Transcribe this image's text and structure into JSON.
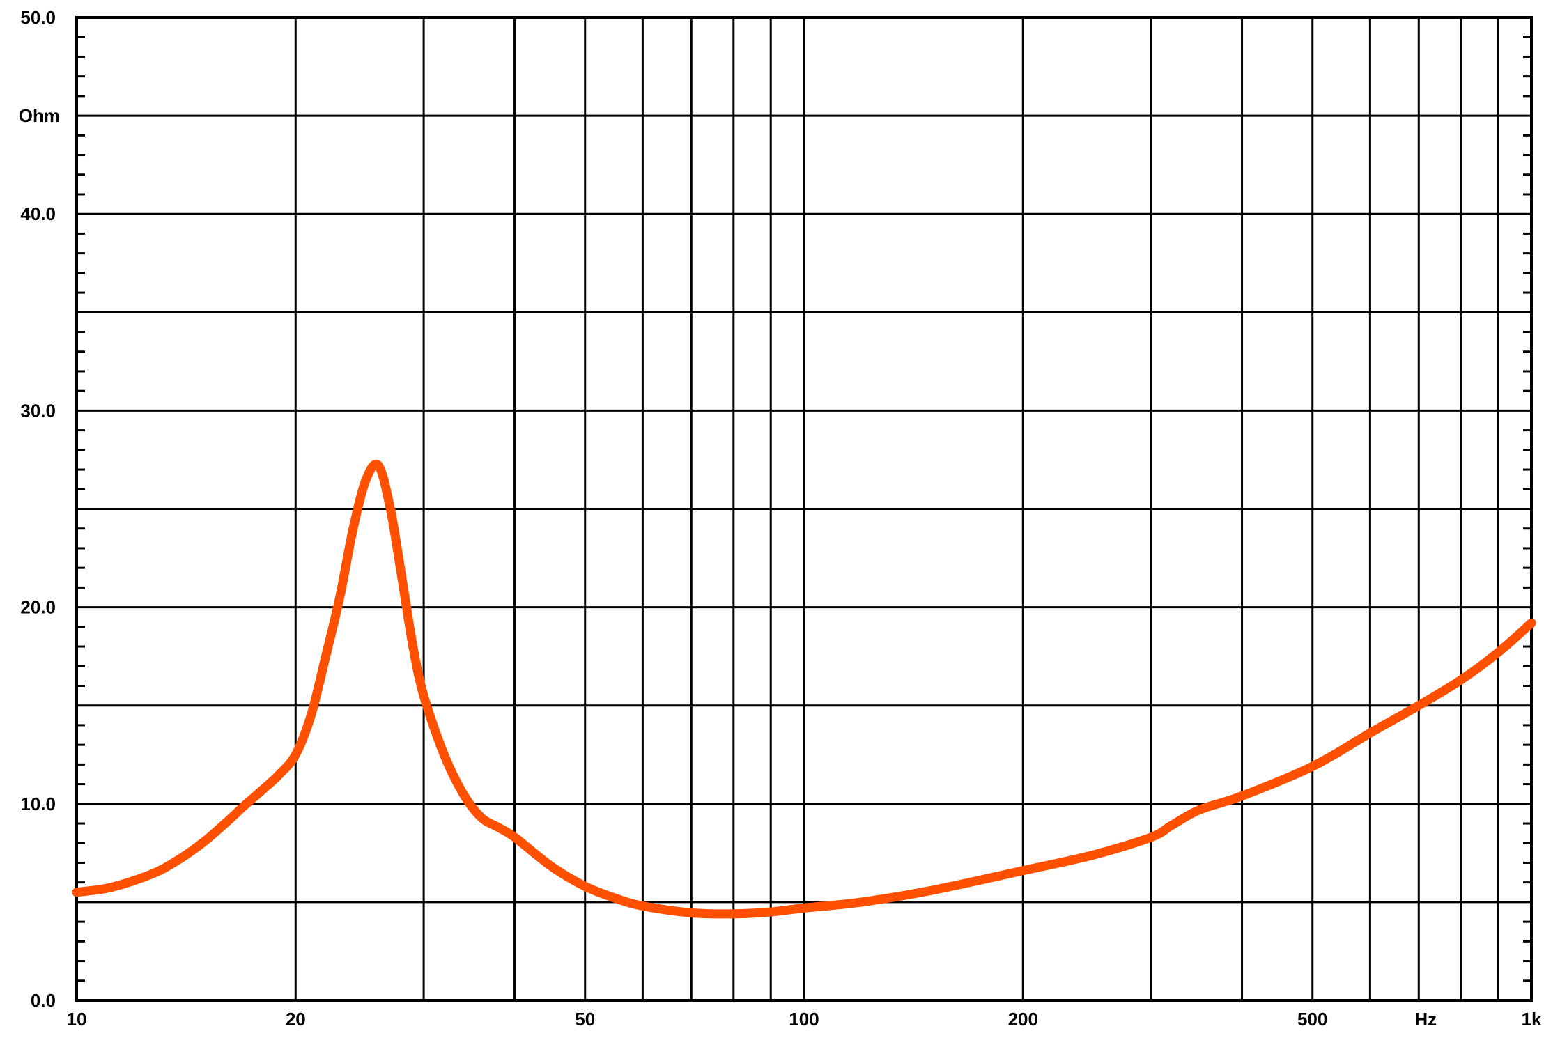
{
  "chart_data": {
    "type": "line",
    "title": "",
    "xlabel": "Hz",
    "ylabel": "Ohm",
    "x_scale": "log",
    "xlim": [
      10,
      1000
    ],
    "ylim": [
      0,
      50
    ],
    "grid": true,
    "x_tick_labels": [
      {
        "value": 10,
        "label": "10"
      },
      {
        "value": 20,
        "label": "20"
      },
      {
        "value": 50,
        "label": "50"
      },
      {
        "value": 100,
        "label": "100"
      },
      {
        "value": 200,
        "label": "200"
      },
      {
        "value": 500,
        "label": "500"
      },
      {
        "value": 1000,
        "label": "1k"
      }
    ],
    "y_tick_labels": [
      {
        "value": 0,
        "label": "0.0"
      },
      {
        "value": 10,
        "label": "10.0"
      },
      {
        "value": 20,
        "label": "20.0"
      },
      {
        "value": 30,
        "label": "30.0"
      },
      {
        "value": 40,
        "label": "40.0"
      },
      {
        "value": 50,
        "label": "50.0"
      }
    ],
    "x_gridlines": [
      20,
      30,
      40,
      50,
      60,
      70,
      80,
      90,
      100,
      200,
      300,
      400,
      500,
      600,
      700,
      800,
      900
    ],
    "y_gridlines": [
      5,
      10,
      15,
      20,
      25,
      30,
      35,
      40,
      45
    ],
    "series": [
      {
        "color": "#ff5000",
        "x": [
          10,
          11,
          12,
          13,
          14,
          15,
          16,
          17,
          18,
          19,
          20,
          21,
          22,
          23,
          24,
          25,
          26,
          27,
          28,
          29,
          30,
          32,
          34,
          36,
          38,
          40,
          45,
          50,
          55,
          60,
          70,
          80,
          90,
          100,
          120,
          150,
          200,
          250,
          300,
          320,
          350,
          400,
          500,
          600,
          700,
          800,
          900,
          1000
        ],
        "y": [
          5.5,
          5.7,
          6.1,
          6.6,
          7.3,
          8.1,
          9.0,
          9.9,
          10.7,
          11.5,
          12.5,
          14.5,
          17.5,
          20.5,
          24.0,
          26.5,
          27.2,
          25.0,
          21.5,
          18.0,
          15.5,
          12.5,
          10.5,
          9.3,
          8.8,
          8.3,
          6.8,
          5.8,
          5.2,
          4.8,
          4.45,
          4.4,
          4.5,
          4.7,
          5.0,
          5.6,
          6.6,
          7.4,
          8.3,
          8.9,
          9.7,
          10.4,
          11.9,
          13.6,
          15.0,
          16.3,
          17.7,
          19.2
        ]
      }
    ]
  }
}
